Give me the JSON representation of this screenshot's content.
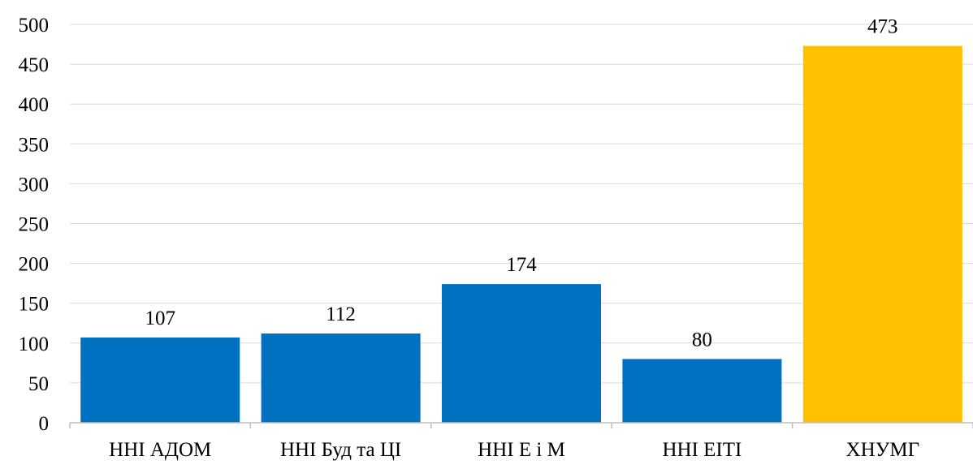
{
  "chart_data": {
    "type": "bar",
    "categories": [
      "ННІ АДОМ",
      "ННІ Буд та ЦІ",
      "ННІ Е і М",
      "ННІ ЕІТІ",
      "ХНУМГ"
    ],
    "values": [
      107,
      112,
      174,
      80,
      473
    ],
    "ylim": [
      0,
      500
    ],
    "yticks": [
      0,
      50,
      100,
      150,
      200,
      250,
      300,
      350,
      400,
      450,
      500
    ],
    "data_labels": [
      "107",
      "112",
      "174",
      "80",
      "473"
    ],
    "bar_colors": [
      "#0070c0",
      "#0070c0",
      "#0070c0",
      "#0070c0",
      "#ffc000"
    ],
    "grid": true,
    "gridline_color": "#d9d9d9",
    "axis_color": "#bfbfbf",
    "legend": "none"
  }
}
